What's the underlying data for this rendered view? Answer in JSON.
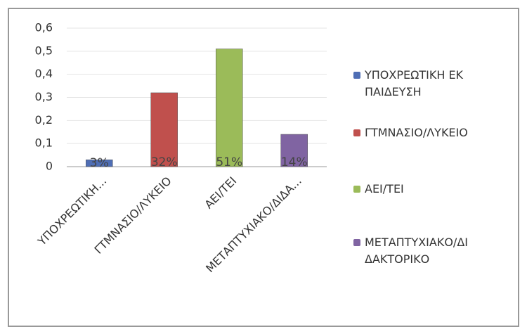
{
  "chart_data": {
    "type": "bar",
    "categories": [
      "ΥΠΟΧΡΕΩΤΙΚΗ...",
      "ΓΤΜΝΑΣΙΟ/ΛΥΚΕΙΟ",
      "ΑΕΙ/ΤΕΙ",
      "ΜΕΤΑΠΤΥΧΙΑΚΟ/ΔΙΔΑ..."
    ],
    "values": [
      0.03,
      0.32,
      0.51,
      0.14
    ],
    "value_labels": [
      "3%",
      "32%",
      "51%",
      "14%"
    ],
    "colors": [
      "#4f6eb5",
      "#c0504d",
      "#9bbb59",
      "#8064a2"
    ],
    "legend": [
      "ΥΠΟΧΡΕΩΤΙΚΗ ΕΚΠΑΙΔΕΥΣΗ",
      "ΓΤΜΝΑΣΙΟ/ΛΥΚΕΙΟ",
      "ΑΕΙ/ΤΕΙ",
      "ΜΕΤΑΠΤΥΧΙΑΚΟ/ΔΙΔΑΚΤΟΡΙΚΟ"
    ],
    "ylim": [
      0,
      0.6
    ],
    "yticks": [
      0,
      {
        "value": 0.1,
        "label": "0,1"
      },
      {
        "value": 0.2,
        "label": "0,2"
      },
      {
        "value": 0.3,
        "label": "0,3"
      },
      {
        "value": 0.4,
        "label": "0,4"
      },
      {
        "value": 0.5,
        "label": "0,5"
      },
      {
        "value": 0.6,
        "label": "0,6"
      }
    ],
    "grid": true
  }
}
